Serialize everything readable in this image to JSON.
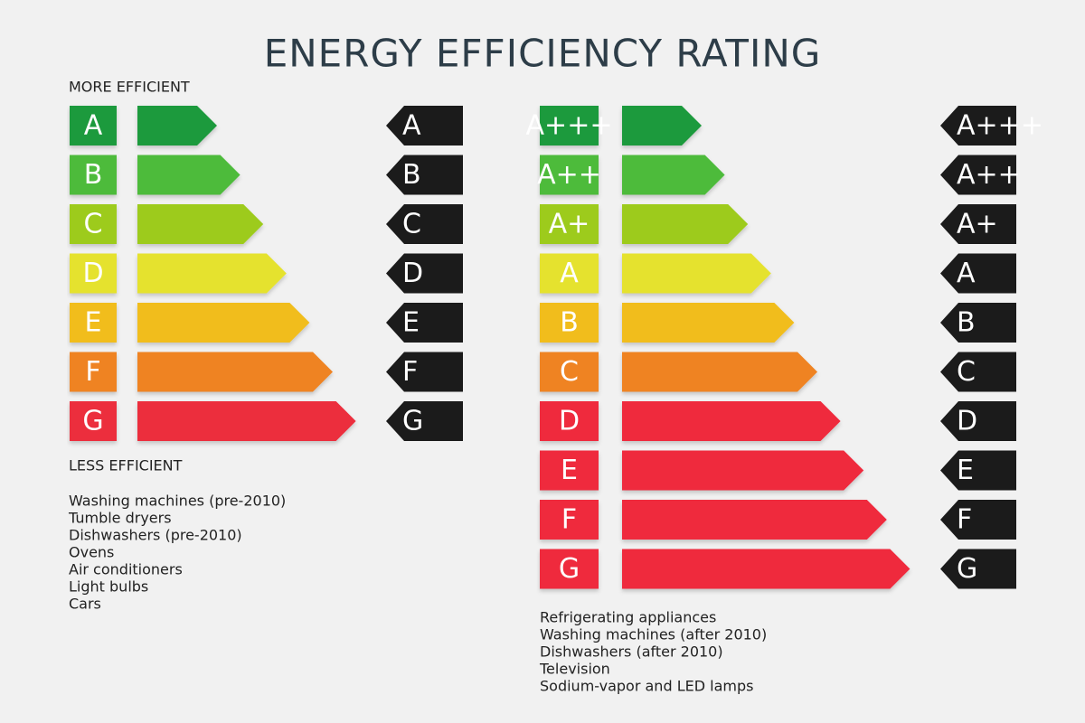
{
  "title": "ENERGY EFFICIENCY RATING",
  "left_scale": {
    "top_label": "MORE EFFICIENT",
    "bottom_label": "LESS EFFICIENT",
    "ratings": [
      {
        "label": "A",
        "color": "#1e9a3c"
      },
      {
        "label": "B",
        "color": "#4dbb3b"
      },
      {
        "label": "C",
        "color": "#9dcb1d"
      },
      {
        "label": "D",
        "color": "#e5e22d"
      },
      {
        "label": "E",
        "color": "#f1bd1c"
      },
      {
        "label": "F",
        "color": "#ef8323"
      },
      {
        "label": "G",
        "color": "#ec2f3e"
      }
    ],
    "appliances": [
      "Washing machines (pre-2010)",
      "Tumble dryers",
      "Dishwashers (pre-2010)",
      "Ovens",
      "Air conditioners",
      "Light bulbs",
      "Cars"
    ]
  },
  "right_scale": {
    "ratings": [
      {
        "label": "A+++",
        "color": "#1e9a3c"
      },
      {
        "label": "A++",
        "color": "#4dbb3b"
      },
      {
        "label": "A+",
        "color": "#9dcb1d"
      },
      {
        "label": "A",
        "color": "#e5e22d"
      },
      {
        "label": "B",
        "color": "#f1bd1c"
      },
      {
        "label": "C",
        "color": "#ef8323"
      },
      {
        "label": "D",
        "color": "#ef2a3d"
      },
      {
        "label": "E",
        "color": "#ef2a3d"
      },
      {
        "label": "F",
        "color": "#ef2a3d"
      },
      {
        "label": "G",
        "color": "#ef2a3d"
      }
    ],
    "appliances": [
      "Refrigerating appliances",
      "Washing machines (after 2010)",
      "Dishwashers (after 2010)",
      "Television",
      "Sodium-vapor and LED lamps"
    ]
  }
}
